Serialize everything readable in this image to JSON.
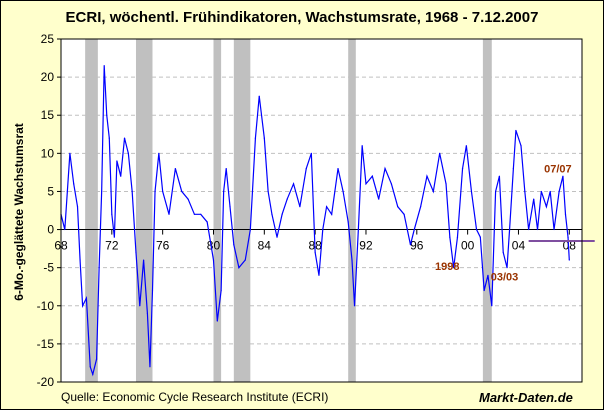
{
  "chart_data": {
    "type": "line",
    "title": "ECRI, wöchentl. Frühindikatoren, Wachstumsrate, 1968 - 7.12.2007",
    "ylabel": "6-Mo.-geglättete Wachstumsrat",
    "xlabel": "",
    "xlim": [
      1968,
      2009
    ],
    "ylim": [
      -20,
      25
    ],
    "grid": true,
    "y_ticks": [
      "-20",
      "-15",
      "-10",
      "-5",
      "0",
      "5",
      "10",
      "15",
      "20",
      "25"
    ],
    "x_ticks": [
      {
        "x": 1968,
        "label": "68"
      },
      {
        "x": 1972,
        "label": "72"
      },
      {
        "x": 1976,
        "label": "76"
      },
      {
        "x": 1980,
        "label": "80"
      },
      {
        "x": 1984,
        "label": "84"
      },
      {
        "x": 1988,
        "label": "88"
      },
      {
        "x": 1992,
        "label": "92"
      },
      {
        "x": 1996,
        "label": "96"
      },
      {
        "x": 2000,
        "label": "00"
      },
      {
        "x": 2004,
        "label": "04"
      },
      {
        "x": 2008,
        "label": "08"
      }
    ],
    "recessions": [
      [
        1969.9,
        1970.9
      ],
      [
        1973.9,
        1975.2
      ],
      [
        1980.0,
        1980.6
      ],
      [
        1981.6,
        1982.9
      ],
      [
        1990.6,
        1991.2
      ],
      [
        2001.2,
        2001.9
      ]
    ],
    "series": [
      {
        "color": "#0000FF",
        "points": [
          [
            1968.0,
            2
          ],
          [
            1968.3,
            0
          ],
          [
            1968.5,
            5
          ],
          [
            1968.7,
            10
          ],
          [
            1969.0,
            6
          ],
          [
            1969.3,
            3
          ],
          [
            1969.5,
            -4
          ],
          [
            1969.7,
            -10
          ],
          [
            1970.0,
            -9
          ],
          [
            1970.3,
            -18
          ],
          [
            1970.5,
            -19
          ],
          [
            1970.8,
            -17
          ],
          [
            1971.0,
            -5
          ],
          [
            1971.2,
            5
          ],
          [
            1971.4,
            21.5
          ],
          [
            1971.6,
            15
          ],
          [
            1971.8,
            12
          ],
          [
            1972.0,
            2
          ],
          [
            1972.2,
            -1
          ],
          [
            1972.4,
            9
          ],
          [
            1972.7,
            7
          ],
          [
            1973.0,
            12
          ],
          [
            1973.3,
            10
          ],
          [
            1973.6,
            5
          ],
          [
            1973.9,
            -3
          ],
          [
            1974.2,
            -10
          ],
          [
            1974.5,
            -4
          ],
          [
            1974.8,
            -11
          ],
          [
            1975.0,
            -18
          ],
          [
            1975.2,
            -8
          ],
          [
            1975.4,
            5
          ],
          [
            1975.7,
            10
          ],
          [
            1976.0,
            5
          ],
          [
            1976.5,
            2
          ],
          [
            1977.0,
            8
          ],
          [
            1977.5,
            5
          ],
          [
            1978.0,
            4
          ],
          [
            1978.5,
            2
          ],
          [
            1979.0,
            2
          ],
          [
            1979.5,
            1
          ],
          [
            1980.0,
            -4
          ],
          [
            1980.3,
            -12
          ],
          [
            1980.6,
            -8
          ],
          [
            1980.8,
            5
          ],
          [
            1981.0,
            8
          ],
          [
            1981.3,
            3
          ],
          [
            1981.6,
            -2
          ],
          [
            1982.0,
            -5
          ],
          [
            1982.5,
            -4
          ],
          [
            1982.9,
            0
          ],
          [
            1983.3,
            12
          ],
          [
            1983.6,
            17.5
          ],
          [
            1984.0,
            12
          ],
          [
            1984.3,
            5
          ],
          [
            1984.6,
            2
          ],
          [
            1985.0,
            -1
          ],
          [
            1985.4,
            2
          ],
          [
            1985.8,
            4
          ],
          [
            1986.3,
            6
          ],
          [
            1986.8,
            3
          ],
          [
            1987.3,
            8
          ],
          [
            1987.7,
            10
          ],
          [
            1988.0,
            -3
          ],
          [
            1988.3,
            -6
          ],
          [
            1988.6,
            0
          ],
          [
            1988.9,
            3
          ],
          [
            1989.3,
            2
          ],
          [
            1989.8,
            8
          ],
          [
            1990.2,
            5
          ],
          [
            1990.6,
            1
          ],
          [
            1990.9,
            -4
          ],
          [
            1991.1,
            -10
          ],
          [
            1991.4,
            0
          ],
          [
            1991.7,
            11
          ],
          [
            1992.0,
            6
          ],
          [
            1992.5,
            7
          ],
          [
            1993.0,
            4
          ],
          [
            1993.5,
            8
          ],
          [
            1994.0,
            6
          ],
          [
            1994.5,
            3
          ],
          [
            1995.0,
            2
          ],
          [
            1995.5,
            -2
          ],
          [
            1995.8,
            0
          ],
          [
            1996.3,
            3
          ],
          [
            1996.8,
            7
          ],
          [
            1997.3,
            5
          ],
          [
            1997.8,
            10
          ],
          [
            1998.3,
            6
          ],
          [
            1998.6,
            -1
          ],
          [
            1998.9,
            -5
          ],
          [
            1999.2,
            -1
          ],
          [
            1999.6,
            8
          ],
          [
            1999.9,
            11
          ],
          [
            2000.3,
            5
          ],
          [
            2000.7,
            0
          ],
          [
            2001.0,
            -1
          ],
          [
            2001.3,
            -8
          ],
          [
            2001.6,
            -6
          ],
          [
            2001.9,
            -10
          ],
          [
            2002.2,
            5
          ],
          [
            2002.5,
            7
          ],
          [
            2002.8,
            -3
          ],
          [
            2003.1,
            -5
          ],
          [
            2003.3,
            0
          ],
          [
            2003.6,
            8
          ],
          [
            2003.8,
            13
          ],
          [
            2004.2,
            11
          ],
          [
            2004.5,
            5
          ],
          [
            2004.8,
            0
          ],
          [
            2005.2,
            4
          ],
          [
            2005.5,
            0
          ],
          [
            2005.8,
            5
          ],
          [
            2006.2,
            3
          ],
          [
            2006.5,
            5
          ],
          [
            2006.8,
            0
          ],
          [
            2007.2,
            5
          ],
          [
            2007.5,
            7
          ],
          [
            2007.7,
            2
          ],
          [
            2007.9,
            -1
          ],
          [
            2008.0,
            -4
          ]
        ]
      }
    ],
    "reference_line": {
      "color": "#7F4FA0",
      "value": -1.5,
      "from": 2004.8,
      "to": 2010
    },
    "annotations": [
      {
        "text": "1998",
        "x": 1998.4,
        "y": -5.3
      },
      {
        "text": "03/03",
        "x": 2002.9,
        "y": -6.7
      },
      {
        "text": "07/07",
        "x": 2007.1,
        "y": 7.5
      }
    ],
    "annotation_color": "#993300"
  },
  "footer": {
    "source": "Quelle: Economic Cycle Research Institute (ECRI)",
    "brand": "Markt-Daten.de"
  }
}
